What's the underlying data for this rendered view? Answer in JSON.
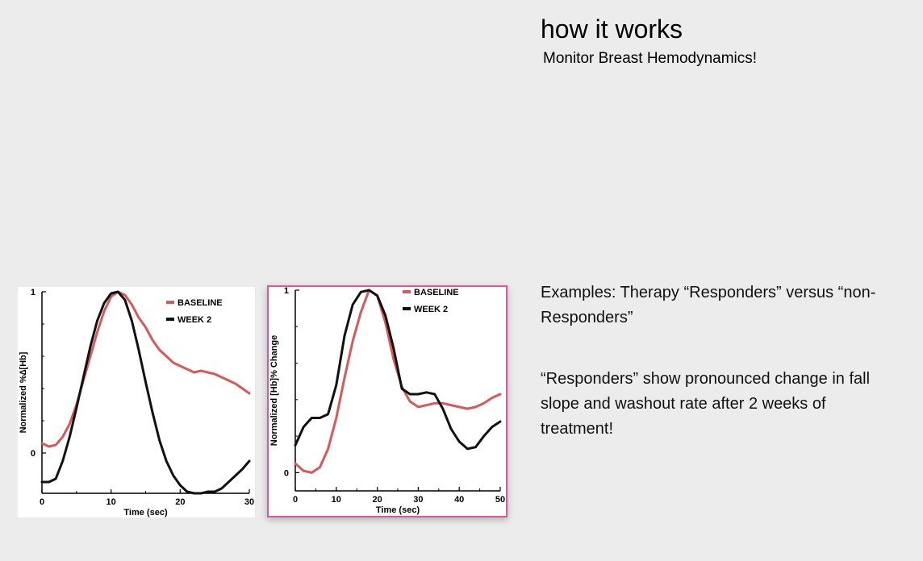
{
  "slide": {
    "title": "how it works",
    "subtitle": "Monitor Breast Hemodynamics!",
    "examples_text": "Examples: Therapy “Responders” versus “non-Responders”",
    "responders_text": "“Responders” show pronounced change  in fall slope and washout rate after 2  weeks of treatment!"
  },
  "colors": {
    "baseline": "#d9585a",
    "week2": "#111111",
    "frame_highlight": "#e0559c"
  },
  "chart_data": [
    {
      "type": "line",
      "xlabel": "Time (sec)",
      "ylabel": "Normalized %∆[Hb]",
      "xlim": [
        0,
        30
      ],
      "ylim": [
        -0.25,
        1
      ],
      "xticks": [
        "0",
        "10",
        "20",
        "30"
      ],
      "yticks": [
        "0",
        "1"
      ],
      "legend_position": "top-right",
      "series": [
        {
          "name": "BASELINE",
          "color": "#d9585a",
          "x": [
            0,
            1,
            2,
            3,
            4,
            5,
            6,
            7,
            8,
            9,
            10,
            11,
            12,
            13,
            14,
            15,
            16,
            17,
            18,
            19,
            20,
            21,
            22,
            23,
            24,
            25,
            26,
            27,
            28,
            29,
            30
          ],
          "y": [
            0.06,
            0.04,
            0.05,
            0.1,
            0.18,
            0.3,
            0.45,
            0.6,
            0.75,
            0.88,
            0.97,
            1.0,
            0.98,
            0.92,
            0.84,
            0.78,
            0.7,
            0.64,
            0.6,
            0.56,
            0.54,
            0.52,
            0.5,
            0.51,
            0.5,
            0.49,
            0.47,
            0.45,
            0.43,
            0.4,
            0.37
          ]
        },
        {
          "name": "WEEK 2",
          "color": "#111111",
          "x": [
            0,
            1,
            2,
            3,
            4,
            5,
            6,
            7,
            8,
            9,
            10,
            11,
            12,
            13,
            14,
            15,
            16,
            17,
            18,
            19,
            20,
            21,
            22,
            23,
            24,
            25,
            26,
            27,
            28,
            29,
            30
          ],
          "y": [
            -0.18,
            -0.18,
            -0.16,
            -0.05,
            0.1,
            0.28,
            0.47,
            0.66,
            0.82,
            0.93,
            0.99,
            1.0,
            0.95,
            0.82,
            0.64,
            0.44,
            0.25,
            0.08,
            -0.05,
            -0.14,
            -0.2,
            -0.24,
            -0.25,
            -0.25,
            -0.24,
            -0.24,
            -0.22,
            -0.18,
            -0.14,
            -0.1,
            -0.05
          ]
        }
      ]
    },
    {
      "type": "line",
      "xlabel": "Time (sec)",
      "ylabel": "Normalized [Hb]% Change",
      "xlim": [
        0,
        50
      ],
      "ylim": [
        -0.1,
        1
      ],
      "xticks": [
        "0",
        "10",
        "20",
        "30",
        "40",
        "50"
      ],
      "yticks": [
        "0",
        "1"
      ],
      "legend_position": "top-center",
      "series": [
        {
          "name": "BASELINE",
          "color": "#d9585a",
          "x": [
            0,
            2,
            4,
            6,
            8,
            10,
            12,
            14,
            16,
            18,
            20,
            22,
            24,
            26,
            28,
            30,
            32,
            34,
            36,
            38,
            40,
            42,
            44,
            46,
            48,
            50
          ],
          "y": [
            0.05,
            0.01,
            0.0,
            0.03,
            0.13,
            0.3,
            0.52,
            0.72,
            0.88,
            1.0,
            0.97,
            0.82,
            0.62,
            0.47,
            0.39,
            0.36,
            0.37,
            0.38,
            0.38,
            0.37,
            0.36,
            0.35,
            0.36,
            0.38,
            0.41,
            0.43
          ]
        },
        {
          "name": "WEEK 2",
          "color": "#111111",
          "x": [
            0,
            2,
            4,
            6,
            8,
            10,
            12,
            14,
            16,
            18,
            20,
            22,
            24,
            26,
            28,
            30,
            32,
            34,
            36,
            38,
            40,
            42,
            44,
            46,
            48,
            50
          ],
          "y": [
            0.15,
            0.25,
            0.3,
            0.3,
            0.32,
            0.48,
            0.75,
            0.92,
            0.99,
            1.0,
            0.97,
            0.86,
            0.68,
            0.46,
            0.43,
            0.43,
            0.44,
            0.43,
            0.35,
            0.24,
            0.17,
            0.13,
            0.14,
            0.2,
            0.25,
            0.28
          ]
        }
      ]
    }
  ]
}
